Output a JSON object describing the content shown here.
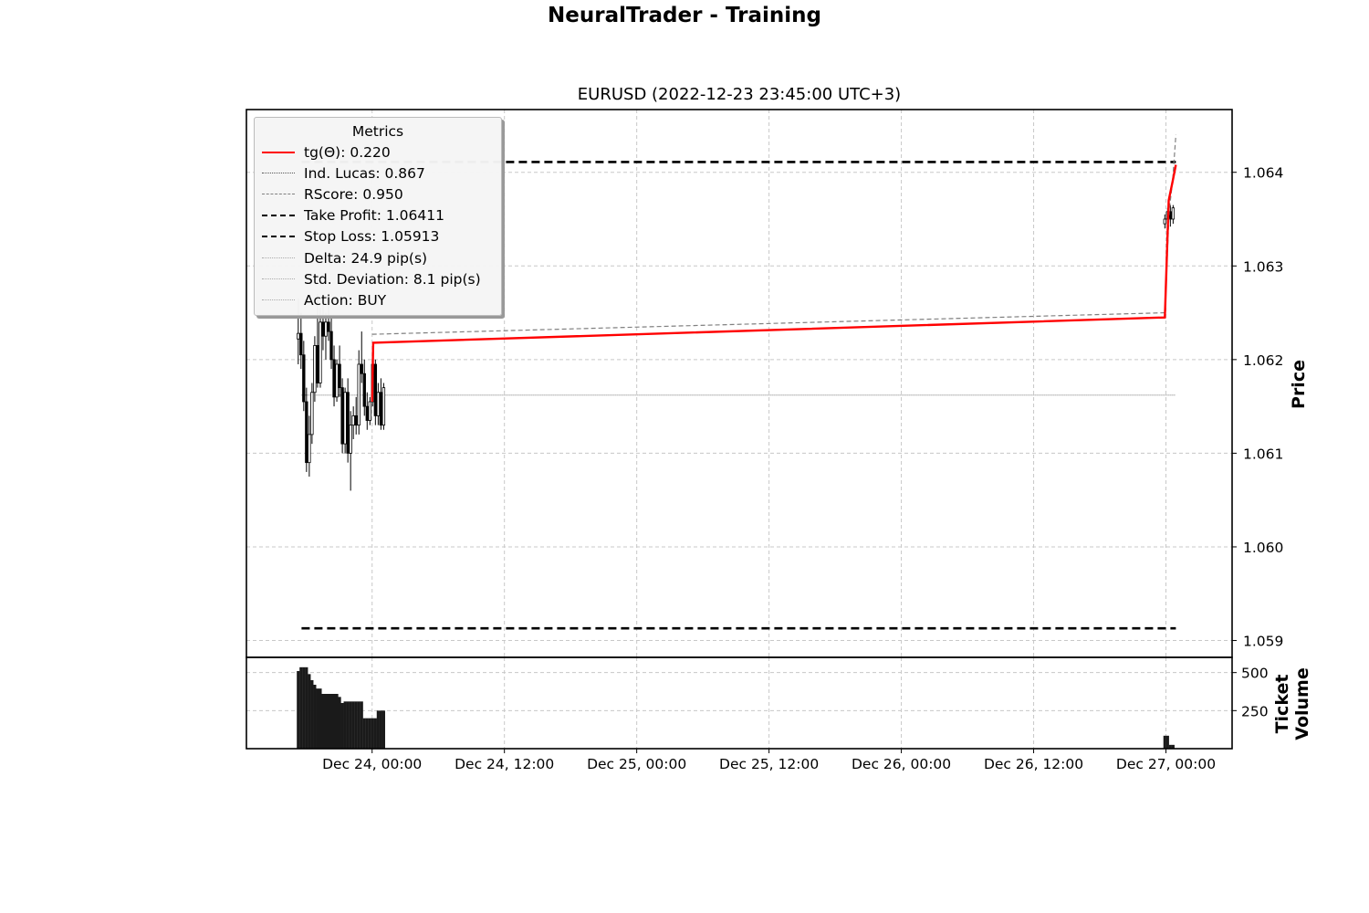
{
  "figure": {
    "title": "NeuralTrader - Training"
  },
  "chart_data": {
    "type": "candlestick",
    "title": "EURUSD (2022-12-23 23:45:00 UTC+3)",
    "ylabel": "Price",
    "volume_ylabel": [
      "Ticket",
      "Volume"
    ],
    "x_tick_labels": [
      "Dec 24, 00:00",
      "Dec 24, 12:00",
      "Dec 25, 00:00",
      "Dec 25, 12:00",
      "Dec 26, 00:00",
      "Dec 26, 12:00",
      "Dec 27, 00:00"
    ],
    "x_tick_hours": [
      0,
      12,
      24,
      36,
      48,
      60,
      72
    ],
    "x_range_hours": [
      -11.4,
      78
    ],
    "y_ticks": [
      "1.059",
      "1.060",
      "1.061",
      "1.062",
      "1.063",
      "1.064"
    ],
    "y_tick_values": [
      1.059,
      1.06,
      1.061,
      1.062,
      1.063,
      1.064
    ],
    "ylim": [
      1.05882,
      1.06467
    ],
    "volume_ticks": [
      "250",
      "500"
    ],
    "volume_tick_values": [
      250,
      500
    ],
    "volume_ylim": [
      0,
      600
    ],
    "grid": true,
    "legend_position": "upper-left",
    "legend": {
      "title": "Metrics",
      "entries": [
        {
          "label": "tg(Θ): 0.220",
          "style": "solid",
          "color": "#ff0000"
        },
        {
          "label": "Ind. Lucas: 0.867",
          "style": "dotted",
          "color": "#555555"
        },
        {
          "label": "RScore: 0.950",
          "style": "dashed",
          "color": "#808080"
        },
        {
          "label": "Take Profit: 1.06411",
          "style": "bold-dashed",
          "color": "#000000"
        },
        {
          "label": "Stop Loss: 1.05913",
          "style": "bold-dashed",
          "color": "#000000"
        },
        {
          "label": "Delta: 24.9 pip(s)",
          "style": "dotted",
          "color": "#aaaaaa"
        },
        {
          "label": "Std. Deviation: 8.1 pip(s)",
          "style": "dotted",
          "color": "#aaaaaa"
        },
        {
          "label": "Action: BUY",
          "style": "dotted",
          "color": "#aaaaaa"
        }
      ]
    },
    "take_profit": 1.06411,
    "stop_loss": 1.05913,
    "hlines_x_range_hours": [
      -6.4,
      72.9
    ],
    "ind_lucas_level": 1.06162,
    "candles_a": {
      "start_hour": -6.7,
      "step_hour": 0.25,
      "ohlc": [
        [
          1.06222,
          1.06265,
          1.06195,
          1.06228
        ],
        [
          1.06228,
          1.0625,
          1.0619,
          1.06205
        ],
        [
          1.06205,
          1.0622,
          1.06145,
          1.06155
        ],
        [
          1.06155,
          1.0617,
          1.0608,
          1.0609
        ],
        [
          1.0609,
          1.0614,
          1.06075,
          1.0612
        ],
        [
          1.0612,
          1.06175,
          1.0611,
          1.06165
        ],
        [
          1.06165,
          1.06225,
          1.06155,
          1.06215
        ],
        [
          1.06215,
          1.0627,
          1.0617,
          1.06175
        ],
        [
          1.06175,
          1.06255,
          1.0617,
          1.0624
        ],
        [
          1.0624,
          1.0626,
          1.0621,
          1.06225
        ],
        [
          1.06225,
          1.0625,
          1.062,
          1.0624
        ],
        [
          1.0624,
          1.06265,
          1.0622,
          1.0623
        ],
        [
          1.0623,
          1.06245,
          1.0619,
          1.062
        ],
        [
          1.062,
          1.06215,
          1.0615,
          1.0616
        ],
        [
          1.0616,
          1.062,
          1.06155,
          1.06195
        ],
        [
          1.06195,
          1.06215,
          1.0616,
          1.0617
        ],
        [
          1.0617,
          1.0618,
          1.061,
          1.0611
        ],
        [
          1.0611,
          1.0617,
          1.061,
          1.06165
        ],
        [
          1.06165,
          1.0618,
          1.0609,
          1.061
        ],
        [
          1.061,
          1.06145,
          1.0606,
          1.0613
        ],
        [
          1.0613,
          1.0615,
          1.06115,
          1.0614
        ],
        [
          1.0614,
          1.0616,
          1.0612,
          1.0613
        ],
        [
          1.0613,
          1.0621,
          1.0612,
          1.06195
        ],
        [
          1.06195,
          1.0623,
          1.06175,
          1.06185
        ],
        [
          1.06185,
          1.062,
          1.0614,
          1.0615
        ],
        [
          1.0615,
          1.06165,
          1.06125,
          1.06135
        ],
        [
          1.06135,
          1.0616,
          1.0613,
          1.06155
        ],
        [
          1.06155,
          1.062,
          1.0615,
          1.06195
        ],
        [
          1.06195,
          1.062,
          1.0613,
          1.0614
        ],
        [
          1.0614,
          1.06175,
          1.0613,
          1.06165
        ],
        [
          1.06165,
          1.0618,
          1.06125,
          1.0613
        ],
        [
          1.0613,
          1.06175,
          1.06125,
          1.0617
        ]
      ]
    },
    "candles_b": {
      "start_hour": 71.9,
      "step_hour": 0.25,
      "ohlc": [
        [
          1.06345,
          1.06355,
          1.0634,
          1.0635
        ],
        [
          1.0635,
          1.06362,
          1.06345,
          1.06358
        ],
        [
          1.06358,
          1.06365,
          1.06342,
          1.0635
        ],
        [
          1.0635,
          1.06365,
          1.06345,
          1.06362
        ]
      ]
    },
    "rscore_line": {
      "x_hours": [
        0.0,
        71.9,
        72.3,
        72.6,
        72.9
      ],
      "y": [
        1.06227,
        1.0625,
        1.0636,
        1.0639,
        1.0644
      ]
    },
    "tg_line": {
      "x_hours": [
        0.0,
        0.1,
        71.9,
        72.25,
        72.6,
        72.9
      ],
      "y": [
        1.06155,
        1.06218,
        1.06245,
        1.0637,
        1.0639,
        1.06408
      ]
    },
    "volume_a": {
      "start_hour": -6.7,
      "step_hour": 0.25,
      "values": [
        510,
        535,
        535,
        535,
        490,
        450,
        420,
        395,
        395,
        360,
        360,
        360,
        360,
        360,
        360,
        340,
        300,
        310,
        310,
        310,
        310,
        310,
        310,
        310,
        200,
        200,
        200,
        200,
        200,
        250,
        250,
        250
      ]
    },
    "volume_b": {
      "start_hour": 71.9,
      "step_hour": 0.25,
      "values": [
        85,
        85,
        25,
        25
      ]
    }
  }
}
